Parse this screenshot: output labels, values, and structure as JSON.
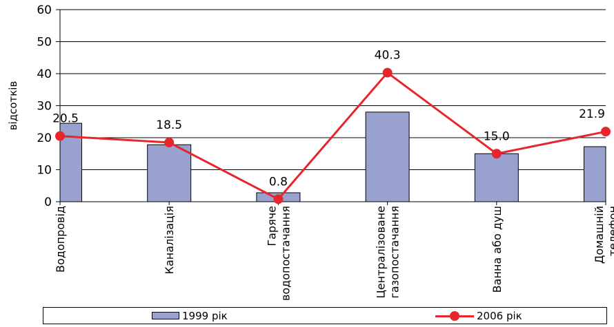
{
  "chart_data": {
    "type": "bar",
    "categories": [
      "Водопровід",
      "Каналізація",
      "Гаряче водопостачання",
      "Централізоване газопостачання",
      "Ванна або душ",
      "Домашній телефон"
    ],
    "category_lines": [
      [
        "Водопровід"
      ],
      [
        "Каналізація"
      ],
      [
        "Гаряче",
        "водопостачання"
      ],
      [
        "Централізоване",
        "газопостачання"
      ],
      [
        "Ванна або душ"
      ],
      [
        "Домашній",
        "телефон"
      ]
    ],
    "ylabel": "відсотків",
    "xlabel": "",
    "ylim": [
      0,
      60
    ],
    "yticks": [
      0,
      10,
      20,
      30,
      40,
      50,
      60
    ],
    "grid": true,
    "legend_position": "bottom",
    "series": [
      {
        "name": "1999 рік",
        "type": "bar",
        "color": "#99a1cf",
        "values": [
          24.5,
          17.8,
          2.8,
          28.0,
          15.0,
          17.2
        ]
      },
      {
        "name": "2006 рік",
        "type": "line",
        "color": "#e8242c",
        "values": [
          20.5,
          18.5,
          0.8,
          40.3,
          15.0,
          21.9
        ],
        "labels": [
          "20.5",
          "18.5",
          "0.8",
          "40.3",
          "15.0",
          "21.9"
        ]
      }
    ]
  }
}
